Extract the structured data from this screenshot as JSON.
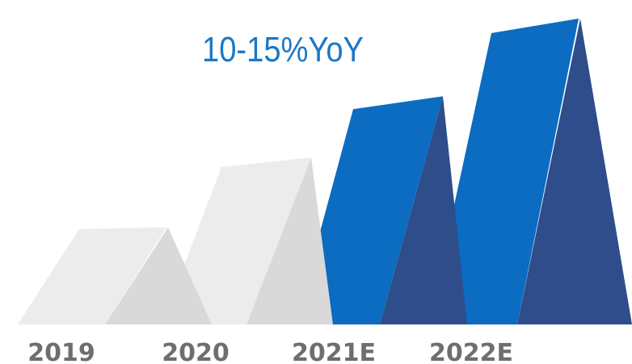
{
  "annotation": {
    "text": "10-15%YoY"
  },
  "chart_data": {
    "type": "bar",
    "title": "",
    "categories": [
      "2019",
      "2020",
      "2021E",
      "2022E"
    ],
    "values": [
      100,
      172,
      235,
      315
    ],
    "ylim": [
      0,
      320
    ],
    "grid": false,
    "annotations": [
      "10-15%YoY"
    ]
  },
  "colors": {
    "headline": "#1a78c8",
    "actual_front": "#ececec",
    "actual_side": "#d9d9d9",
    "growth_front": "#0b6cc1",
    "growth_side": "#2e4d8a",
    "label": "#6e6e6e"
  }
}
